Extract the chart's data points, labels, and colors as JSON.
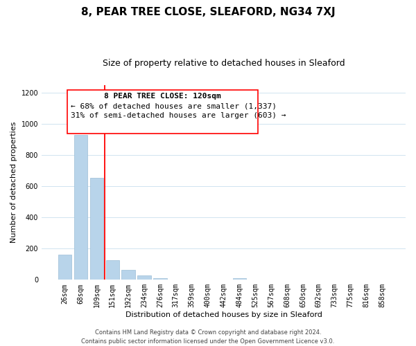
{
  "title": "8, PEAR TREE CLOSE, SLEAFORD, NG34 7XJ",
  "subtitle": "Size of property relative to detached houses in Sleaford",
  "xlabel": "Distribution of detached houses by size in Sleaford",
  "ylabel": "Number of detached properties",
  "bar_labels": [
    "26sqm",
    "68sqm",
    "109sqm",
    "151sqm",
    "192sqm",
    "234sqm",
    "276sqm",
    "317sqm",
    "359sqm",
    "400sqm",
    "442sqm",
    "484sqm",
    "525sqm",
    "567sqm",
    "608sqm",
    "650sqm",
    "692sqm",
    "733sqm",
    "775sqm",
    "816sqm",
    "858sqm"
  ],
  "bar_values": [
    160,
    930,
    655,
    125,
    62,
    28,
    10,
    0,
    0,
    0,
    0,
    12,
    0,
    0,
    0,
    0,
    0,
    0,
    0,
    0,
    0
  ],
  "bar_color": "#b8d4ea",
  "bar_edge_color": "#9bbdd6",
  "grid_color": "#d0e4f0",
  "ylim": [
    0,
    1250
  ],
  "yticks": [
    0,
    200,
    400,
    600,
    800,
    1000,
    1200
  ],
  "property_label": "8 PEAR TREE CLOSE: 120sqm",
  "annotation_line1": "← 68% of detached houses are smaller (1,337)",
  "annotation_line2": "31% of semi-detached houses are larger (603) →",
  "footer_line1": "Contains HM Land Registry data © Crown copyright and database right 2024.",
  "footer_line2": "Contains public sector information licensed under the Open Government Licence v3.0.",
  "title_fontsize": 11,
  "subtitle_fontsize": 9,
  "axis_label_fontsize": 8,
  "tick_fontsize": 7,
  "ylabel_fontsize": 8,
  "footer_fontsize": 6,
  "annotation_fontsize": 8
}
